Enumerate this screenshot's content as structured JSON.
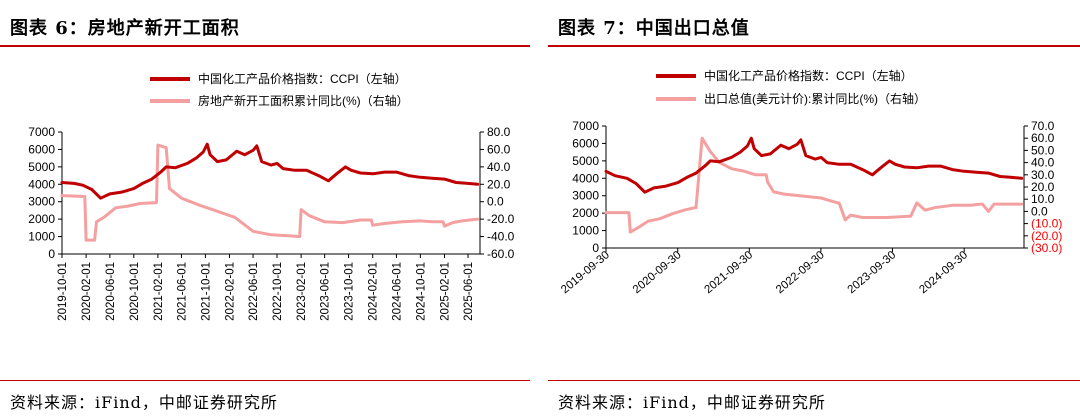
{
  "figures": [
    {
      "title": "图表 6：房地产新开工面积",
      "source": "资料来源：iFind，中邮证券研究所"
    },
    {
      "title": "图表 7：中国出口总值",
      "source": "资料来源：iFind，中邮证券研究所"
    }
  ],
  "colors": {
    "ccpi": "#c00000",
    "secondary": "#f4a0a0",
    "rule": "#c00000",
    "right_axis_negative": "#ff0000"
  },
  "chart_data": [
    {
      "type": "line",
      "x_type": "date",
      "x_tick_labels": [
        "2019-10-01",
        "2020-02-01",
        "2020-06-01",
        "2020-10-01",
        "2021-02-01",
        "2021-06-01",
        "2021-10-01",
        "2022-02-01",
        "2022-06-01",
        "2022-10-01",
        "2023-02-01",
        "2023-06-01",
        "2023-10-01",
        "2024-02-01",
        "2024-06-01",
        "2024-10-01",
        "2025-02-01",
        "2025-06-01"
      ],
      "xlim": [
        "2019-10-01",
        "2025-08-01"
      ],
      "y_left": {
        "ylim": [
          0,
          7000
        ],
        "ticks": [
          "0",
          "1000",
          "2000",
          "3000",
          "4000",
          "5000",
          "6000",
          "7000"
        ]
      },
      "y_right": {
        "ylim": [
          -60,
          80
        ],
        "ticks": [
          "-60.0",
          "-40.0",
          "-20.0",
          "0.0",
          "20.0",
          "40.0",
          "60.0",
          "80.0"
        ]
      },
      "legend": {
        "position": "top",
        "entries": [
          "中国化工产品价格指数：CCPI（左轴）",
          "房地产新开工面积累计同比(%)（右轴）"
        ]
      },
      "series": [
        {
          "name": "中国化工产品价格指数：CCPI（左轴）",
          "axis": "left",
          "color": "#c00000",
          "width": 3,
          "points": [
            [
              "2019-10-01",
              4100
            ],
            [
              "2019-12-01",
              4050
            ],
            [
              "2020-01-15",
              3950
            ],
            [
              "2020-03-01",
              3700
            ],
            [
              "2020-04-15",
              3200
            ],
            [
              "2020-06-01",
              3450
            ],
            [
              "2020-08-01",
              3550
            ],
            [
              "2020-10-01",
              3750
            ],
            [
              "2020-11-15",
              4050
            ],
            [
              "2021-01-01",
              4300
            ],
            [
              "2021-02-15",
              4700
            ],
            [
              "2021-03-15",
              5000
            ],
            [
              "2021-05-01",
              4950
            ],
            [
              "2021-07-01",
              5200
            ],
            [
              "2021-08-15",
              5500
            ],
            [
              "2021-09-20",
              5850
            ],
            [
              "2021-10-10",
              6300
            ],
            [
              "2021-10-25",
              5700
            ],
            [
              "2021-12-01",
              5300
            ],
            [
              "2022-01-15",
              5400
            ],
            [
              "2022-03-10",
              5900
            ],
            [
              "2022-04-20",
              5700
            ],
            [
              "2022-06-01",
              5950
            ],
            [
              "2022-06-20",
              6200
            ],
            [
              "2022-07-15",
              5300
            ],
            [
              "2022-09-01",
              5100
            ],
            [
              "2022-10-01",
              5200
            ],
            [
              "2022-11-01",
              4900
            ],
            [
              "2023-01-01",
              4800
            ],
            [
              "2023-03-01",
              4800
            ],
            [
              "2023-05-01",
              4500
            ],
            [
              "2023-06-20",
              4200
            ],
            [
              "2023-08-01",
              4600
            ],
            [
              "2023-09-15",
              5000
            ],
            [
              "2023-10-15",
              4800
            ],
            [
              "2023-12-01",
              4650
            ],
            [
              "2024-02-01",
              4600
            ],
            [
              "2024-04-01",
              4700
            ],
            [
              "2024-06-01",
              4700
            ],
            [
              "2024-08-01",
              4500
            ],
            [
              "2024-10-01",
              4400
            ],
            [
              "2024-12-01",
              4350
            ],
            [
              "2025-02-01",
              4300
            ],
            [
              "2025-04-01",
              4100
            ],
            [
              "2025-06-01",
              4050
            ],
            [
              "2025-07-20",
              4000
            ]
          ]
        },
        {
          "name": "房地产新开工面积累计同比(%)（右轴）",
          "axis": "right",
          "color": "#f4a0a0",
          "width": 3,
          "points": [
            [
              "2019-10-01",
              7
            ],
            [
              "2020-01-25",
              6
            ],
            [
              "2020-02-01",
              -44
            ],
            [
              "2020-03-15",
              -44
            ],
            [
              "2020-03-25",
              -23
            ],
            [
              "2020-05-01",
              -18
            ],
            [
              "2020-07-01",
              -7
            ],
            [
              "2020-09-01",
              -5
            ],
            [
              "2020-11-01",
              -2
            ],
            [
              "2021-01-25",
              -1
            ],
            [
              "2021-02-01",
              65
            ],
            [
              "2021-03-15",
              62
            ],
            [
              "2021-04-01",
              15
            ],
            [
              "2021-06-01",
              4
            ],
            [
              "2021-09-01",
              -4
            ],
            [
              "2021-12-01",
              -11
            ],
            [
              "2022-03-01",
              -18
            ],
            [
              "2022-06-01",
              -34
            ],
            [
              "2022-09-01",
              -38
            ],
            [
              "2022-12-01",
              -39
            ],
            [
              "2023-01-25",
              -40
            ],
            [
              "2023-02-01",
              -9
            ],
            [
              "2023-03-15",
              -16
            ],
            [
              "2023-06-01",
              -23
            ],
            [
              "2023-09-01",
              -24
            ],
            [
              "2023-12-01",
              -21
            ],
            [
              "2024-01-25",
              -21
            ],
            [
              "2024-02-01",
              -27
            ],
            [
              "2024-04-01",
              -25
            ],
            [
              "2024-07-01",
              -23
            ],
            [
              "2024-10-01",
              -22
            ],
            [
              "2024-12-01",
              -23
            ],
            [
              "2025-01-25",
              -23
            ],
            [
              "2025-02-01",
              -28
            ],
            [
              "2025-03-15",
              -24
            ],
            [
              "2025-05-01",
              -22
            ],
            [
              "2025-07-20",
              -20
            ]
          ]
        }
      ]
    },
    {
      "type": "line",
      "x_type": "date",
      "x_tick_labels": [
        "2019-09-30",
        "2020-09-30",
        "2021-09-30",
        "2022-09-30",
        "2023-09-30",
        "2024-09-30"
      ],
      "xlim": [
        "2019-09-30",
        "2025-08-01"
      ],
      "y_left": {
        "ylim": [
          0,
          7000
        ],
        "ticks": [
          "0",
          "1000",
          "2000",
          "3000",
          "4000",
          "5000",
          "6000",
          "7000"
        ]
      },
      "y_right": {
        "ylim": [
          -30,
          70
        ],
        "ticks": [
          "(30.0)",
          "(20.0)",
          "(10.0)",
          "0.0",
          "10.0",
          "20.0",
          "30.0",
          "40.0",
          "50.0",
          "60.0",
          "70.0"
        ]
      },
      "legend": {
        "position": "top",
        "entries": [
          "中国化工产品价格指数：CCPI（左轴）",
          "出口总值(美元计价):累计同比(%)（右轴）"
        ]
      },
      "series": [
        {
          "name": "中国化工产品价格指数：CCPI（左轴）",
          "axis": "left",
          "color": "#c00000",
          "width": 3,
          "points": [
            [
              "2019-09-30",
              4400
            ],
            [
              "2019-11-15",
              4150
            ],
            [
              "2020-01-15",
              4000
            ],
            [
              "2020-03-01",
              3700
            ],
            [
              "2020-04-15",
              3200
            ],
            [
              "2020-06-01",
              3450
            ],
            [
              "2020-08-01",
              3550
            ],
            [
              "2020-10-01",
              3750
            ],
            [
              "2020-11-15",
              4050
            ],
            [
              "2021-01-01",
              4300
            ],
            [
              "2021-02-15",
              4700
            ],
            [
              "2021-03-15",
              5000
            ],
            [
              "2021-05-01",
              4950
            ],
            [
              "2021-07-01",
              5200
            ],
            [
              "2021-08-15",
              5500
            ],
            [
              "2021-09-20",
              5850
            ],
            [
              "2021-10-10",
              6300
            ],
            [
              "2021-10-25",
              5700
            ],
            [
              "2021-12-01",
              5300
            ],
            [
              "2022-01-15",
              5400
            ],
            [
              "2022-03-10",
              5900
            ],
            [
              "2022-04-20",
              5700
            ],
            [
              "2022-06-01",
              5950
            ],
            [
              "2022-06-20",
              6200
            ],
            [
              "2022-07-15",
              5300
            ],
            [
              "2022-09-01",
              5100
            ],
            [
              "2022-10-01",
              5200
            ],
            [
              "2022-11-01",
              4900
            ],
            [
              "2023-01-01",
              4800
            ],
            [
              "2023-03-01",
              4800
            ],
            [
              "2023-05-01",
              4500
            ],
            [
              "2023-06-20",
              4200
            ],
            [
              "2023-08-01",
              4600
            ],
            [
              "2023-09-15",
              5000
            ],
            [
              "2023-10-15",
              4800
            ],
            [
              "2023-12-01",
              4650
            ],
            [
              "2024-02-01",
              4600
            ],
            [
              "2024-04-01",
              4700
            ],
            [
              "2024-06-01",
              4700
            ],
            [
              "2024-08-01",
              4500
            ],
            [
              "2024-10-01",
              4400
            ],
            [
              "2024-12-01",
              4350
            ],
            [
              "2025-02-01",
              4300
            ],
            [
              "2025-04-01",
              4100
            ],
            [
              "2025-06-01",
              4050
            ],
            [
              "2025-07-20",
              4000
            ]
          ]
        },
        {
          "name": "出口总值(美元计价):累计同比(%)（右轴）",
          "axis": "right",
          "color": "#f4a0a0",
          "width": 3,
          "points": [
            [
              "2019-09-30",
              -1
            ],
            [
              "2020-01-25",
              -1
            ],
            [
              "2020-02-01",
              -17
            ],
            [
              "2020-03-15",
              -13
            ],
            [
              "2020-05-01",
              -8
            ],
            [
              "2020-07-01",
              -6
            ],
            [
              "2020-09-01",
              -2
            ],
            [
              "2020-11-01",
              1
            ],
            [
              "2020-12-25",
              3
            ],
            [
              "2021-01-01",
              3
            ],
            [
              "2021-02-01",
              60
            ],
            [
              "2021-03-15",
              49
            ],
            [
              "2021-05-01",
              40
            ],
            [
              "2021-07-01",
              35
            ],
            [
              "2021-09-01",
              33
            ],
            [
              "2021-11-01",
              30
            ],
            [
              "2021-12-25",
              30
            ],
            [
              "2022-01-01",
              24
            ],
            [
              "2022-02-01",
              16
            ],
            [
              "2022-04-01",
              14
            ],
            [
              "2022-06-01",
              13
            ],
            [
              "2022-08-01",
              12
            ],
            [
              "2022-10-01",
              11
            ],
            [
              "2022-12-25",
              7
            ],
            [
              "2023-01-01",
              7
            ],
            [
              "2023-02-01",
              -7
            ],
            [
              "2023-03-01",
              -3
            ],
            [
              "2023-05-01",
              -5
            ],
            [
              "2023-07-01",
              -5
            ],
            [
              "2023-09-01",
              -5
            ],
            [
              "2023-12-25",
              -4
            ],
            [
              "2024-01-01",
              -4
            ],
            [
              "2024-02-01",
              7
            ],
            [
              "2024-03-15",
              1
            ],
            [
              "2024-05-01",
              3
            ],
            [
              "2024-08-01",
              5
            ],
            [
              "2024-11-01",
              5
            ],
            [
              "2024-12-25",
              6
            ],
            [
              "2025-01-01",
              6
            ],
            [
              "2025-02-01",
              0
            ],
            [
              "2025-03-01",
              6
            ],
            [
              "2025-05-01",
              6
            ],
            [
              "2025-07-20",
              6
            ]
          ]
        }
      ]
    }
  ]
}
